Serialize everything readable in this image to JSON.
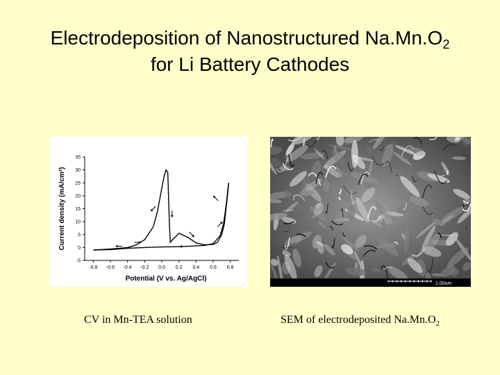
{
  "slide": {
    "title_line1": "Electrodeposition of Nanostructured Na.Mn.O",
    "title_line1_sub": "2",
    "title_line2": "for Li Battery Cathodes",
    "caption_left": "CV in Mn-TEA solution",
    "caption_right": "SEM of electrodeposited Na.Mn.O",
    "caption_right_sub": "2",
    "sem_scale_label": "1.00um",
    "background_color": "#FFFFCC"
  },
  "chart_data": {
    "type": "line",
    "title": "",
    "xlabel": "Potential (V vs. Ag/AgCl)",
    "ylabel": "Current density (mA/cm²)",
    "xlim": [
      -0.9,
      0.9
    ],
    "ylim": [
      -5,
      35
    ],
    "xticks": [
      "-0.8",
      "-0.6",
      "-0.4",
      "-0.2",
      "0.0",
      "0.2",
      "0.4",
      "0.6",
      "0.8"
    ],
    "yticks": [
      "-5",
      "0",
      "5",
      "10",
      "15",
      "20",
      "25",
      "30",
      "35"
    ],
    "grid": false,
    "series": [
      {
        "x": [
          -0.8,
          -0.6,
          -0.4,
          -0.3,
          -0.2,
          -0.1,
          -0.05,
          0.0,
          0.03,
          0.05,
          0.07
        ],
        "y": [
          -1,
          -0.6,
          0,
          1,
          3,
          8,
          14,
          23,
          28,
          30,
          29
        ]
      },
      {
        "x": [
          0.07,
          0.09,
          0.1,
          0.12,
          0.2,
          0.3,
          0.4,
          0.5,
          0.6,
          0.65,
          0.7,
          0.73,
          0.75,
          0.77,
          0.78
        ],
        "y": [
          29,
          8,
          2,
          2.8,
          5.5,
          4,
          1.8,
          1.0,
          1.2,
          2,
          5,
          9,
          15,
          21,
          25
        ]
      },
      {
        "x": [
          0.78,
          0.75,
          0.72,
          0.68,
          0.6,
          0.5,
          0.4,
          0.2,
          0.0,
          -0.2,
          -0.4,
          -0.6,
          -0.8
        ],
        "y": [
          25,
          16,
          9,
          4.5,
          1.5,
          0.8,
          0.6,
          0.3,
          0.2,
          0,
          -0.3,
          -0.8,
          -1
        ]
      }
    ],
    "annotations": [
      {
        "type": "arrow",
        "x": -0.1,
        "y": 15,
        "direction": "down-left"
      },
      {
        "type": "arrow",
        "x": 0.12,
        "y": 13,
        "direction": "down"
      },
      {
        "type": "arrow",
        "x": 0.35,
        "y": 5,
        "direction": "down-right"
      },
      {
        "type": "arrow",
        "x": 0.63,
        "y": 19,
        "direction": "up-left"
      },
      {
        "type": "arrow",
        "x": 0.68,
        "y": 9,
        "direction": "up-right"
      },
      {
        "type": "arrow",
        "x": -0.28,
        "y": 2,
        "direction": "right"
      },
      {
        "type": "arrow",
        "x": -0.5,
        "y": 0.5,
        "direction": "left"
      },
      {
        "type": "arrow",
        "x": 0.25,
        "y": 0.4,
        "direction": "left"
      }
    ],
    "line_color": "#000000"
  }
}
